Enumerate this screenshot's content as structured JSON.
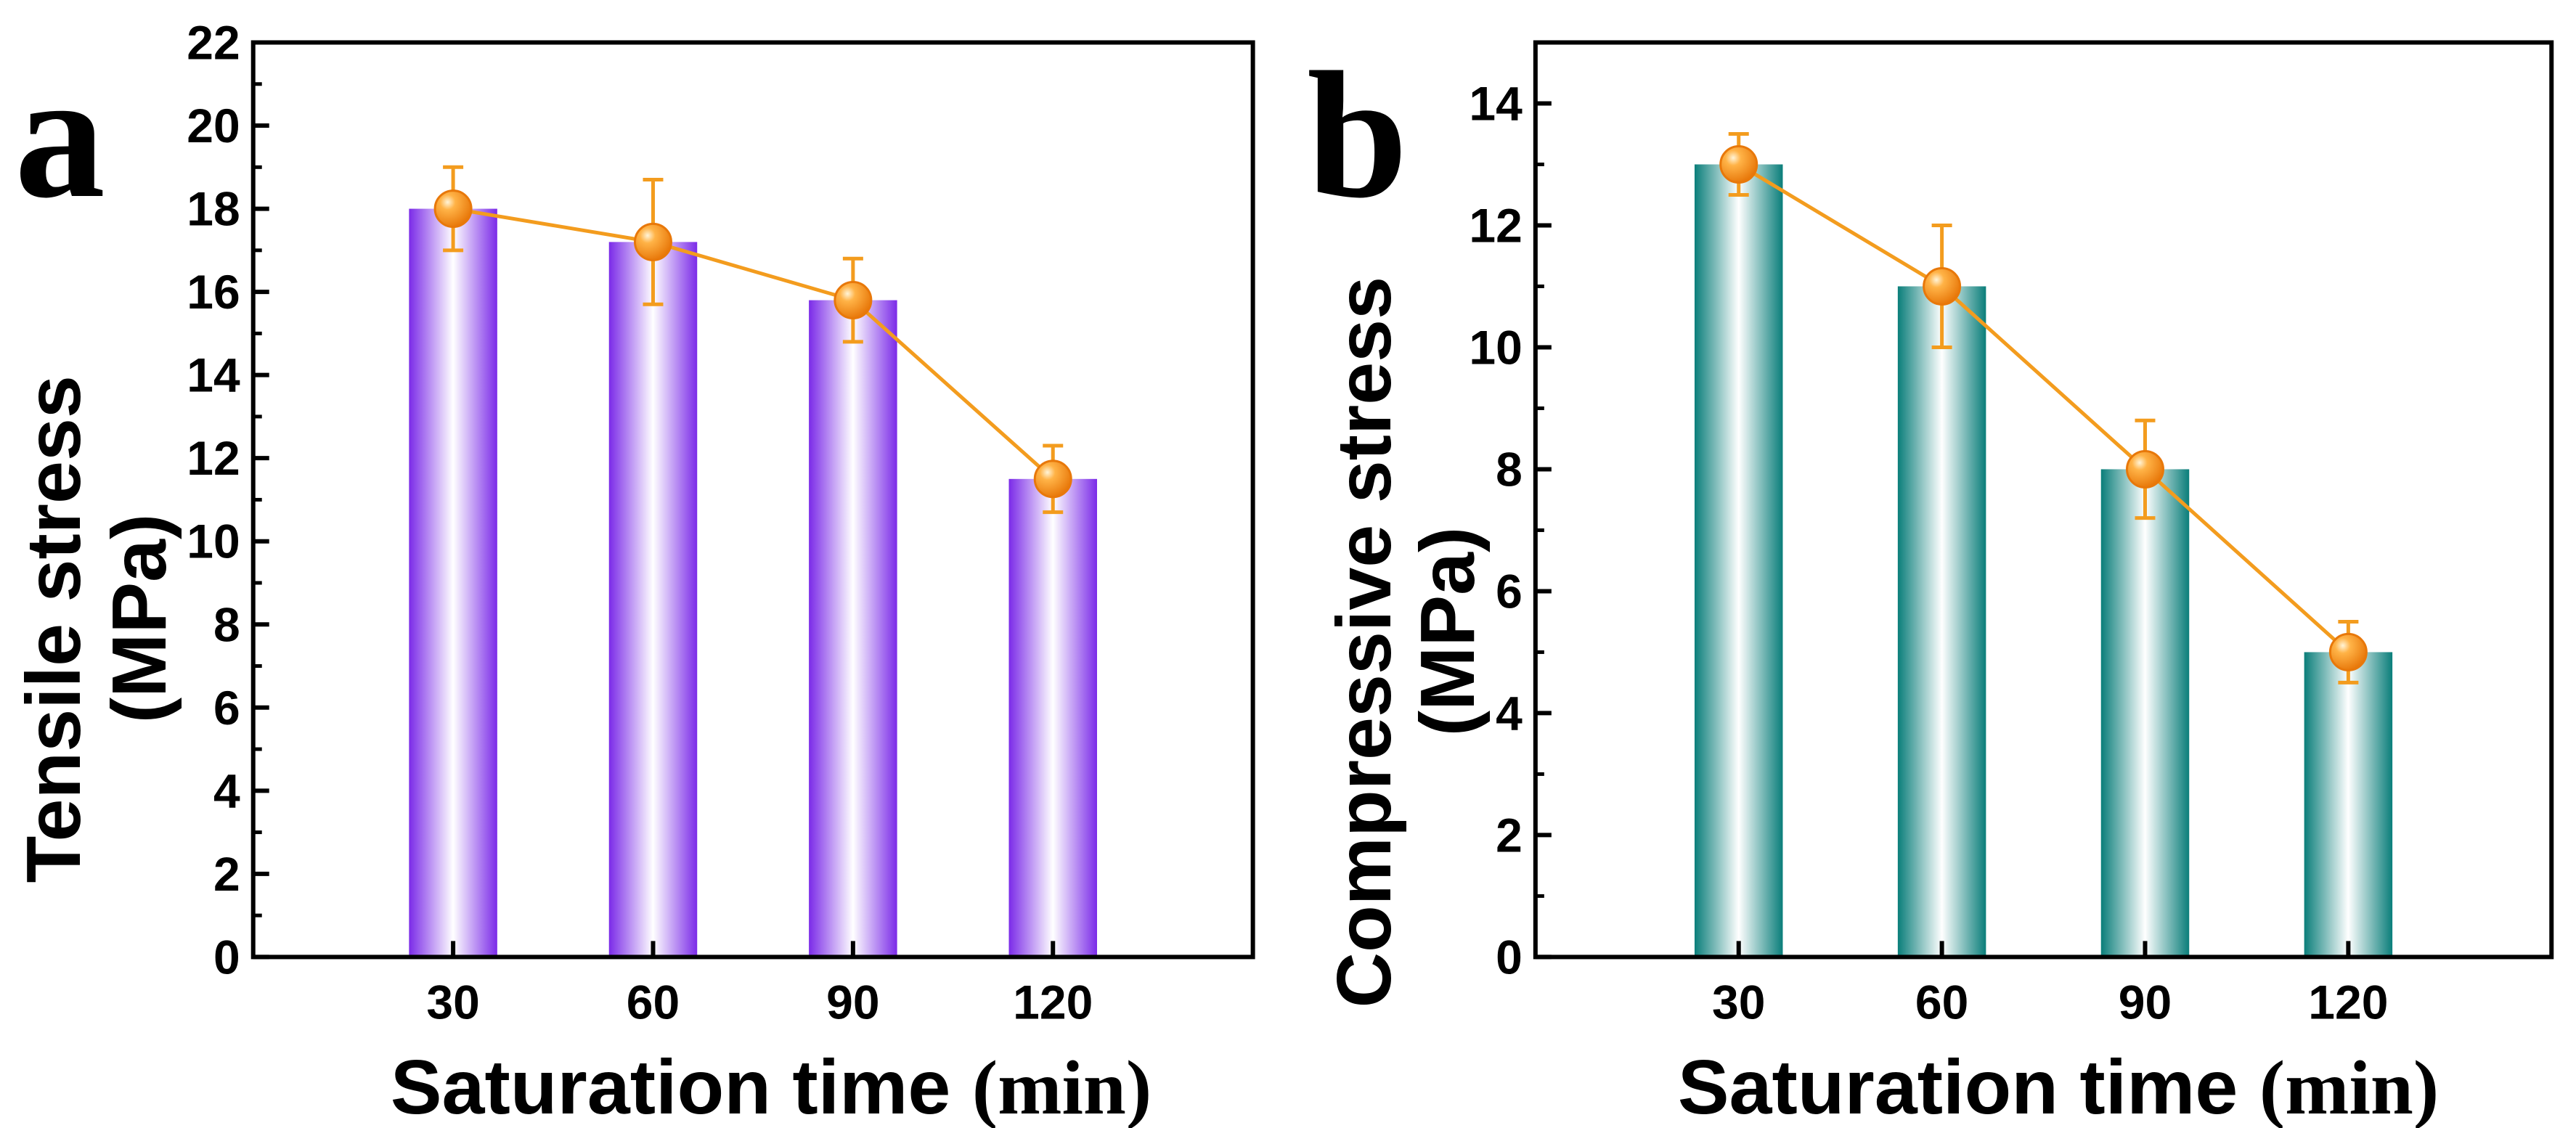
{
  "chart_data": [
    {
      "type": "bar",
      "panel_label": "a",
      "categories": [
        "30",
        "60",
        "90",
        "120"
      ],
      "values": [
        18,
        17.2,
        15.8,
        11.5
      ],
      "line_values": [
        18,
        17.2,
        15.8,
        11.5
      ],
      "error_bars": [
        1.0,
        1.5,
        1.0,
        0.8
      ],
      "xlabel": "Saturation time",
      "xlabel_unit": "(min)",
      "ylabel_line1": "Tensile stress",
      "ylabel_line2": "(MPa)",
      "ylim": [
        0,
        22
      ],
      "yticks": [
        0,
        2,
        4,
        6,
        8,
        10,
        12,
        14,
        16,
        18,
        20,
        22
      ],
      "bar_color": "#7b2be8",
      "line_color": "#f39c1e",
      "grid": false
    },
    {
      "type": "bar",
      "panel_label": "b",
      "categories": [
        "30",
        "60",
        "90",
        "120"
      ],
      "values": [
        13,
        11,
        8,
        5
      ],
      "line_values": [
        13,
        11,
        8,
        5
      ],
      "error_bars": [
        0.5,
        1.0,
        0.8,
        0.5
      ],
      "xlabel": "Saturation time",
      "xlabel_unit": "(min)",
      "ylabel_line1": "Compressive stress",
      "ylabel_line2": "(MPa)",
      "ylim": [
        0,
        15
      ],
      "yticks": [
        0,
        2,
        4,
        6,
        8,
        10,
        12,
        14
      ],
      "bar_color": "#0a7e7a",
      "line_color": "#f39c1e",
      "grid": false
    }
  ]
}
